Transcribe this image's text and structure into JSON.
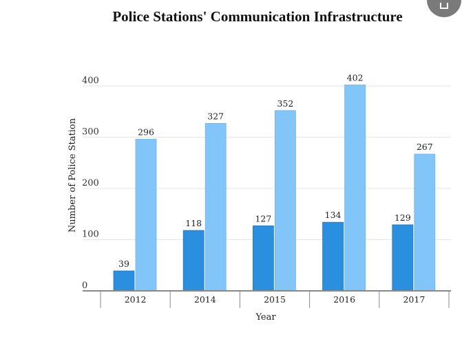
{
  "chart_data": {
    "type": "bar",
    "title": "Police Stations' Communication Infrastructure",
    "xlabel": "Year",
    "ylabel": "Number of Police Station",
    "categories": [
      "2012",
      "2014",
      "2015",
      "2016",
      "2017"
    ],
    "series": [
      {
        "values": [
          39,
          118,
          127,
          134,
          129
        ],
        "color": "#2b8fdf"
      },
      {
        "values": [
          296,
          327,
          352,
          402,
          267
        ],
        "color": "#82c5f8"
      }
    ],
    "ylim": [
      0,
      400
    ],
    "yticks": [
      0,
      100,
      200,
      300,
      400
    ],
    "grid": true,
    "data_labels": true
  }
}
